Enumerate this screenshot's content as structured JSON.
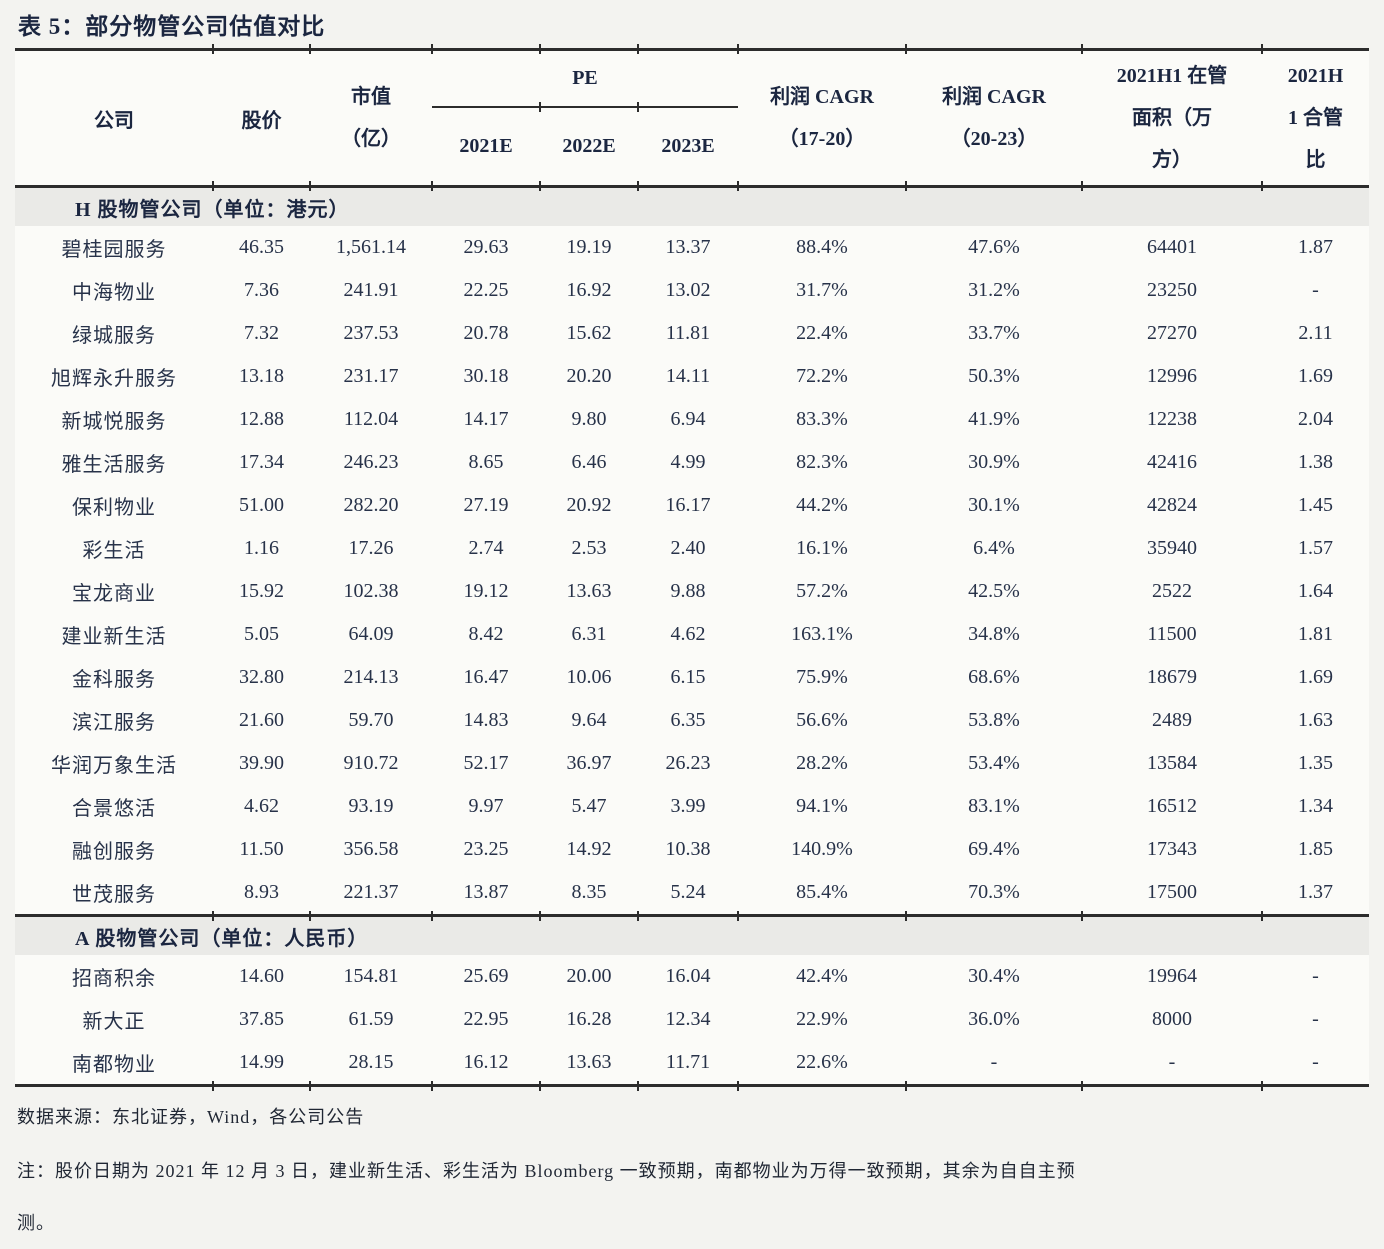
{
  "title": "表 5：部分物管公司估值对比",
  "header": {
    "company": "公司",
    "price": "股价",
    "market_cap_lines": [
      "市值",
      "（亿）"
    ],
    "pe_group": "PE",
    "pe_years": [
      "2021E",
      "2022E",
      "2023E"
    ],
    "cagr_17_20_lines": [
      "利润 CAGR",
      "（17-20）"
    ],
    "cagr_20_23_lines": [
      "利润 CAGR",
      "（20-23）"
    ],
    "managed_area_lines": [
      "2021H1 在管",
      "面积（万",
      "方）"
    ],
    "ratio_lines": [
      "2021H",
      "1 合管",
      "比"
    ]
  },
  "sections": [
    {
      "label": "H 股物管公司（单位：港元）",
      "rows": [
        [
          "碧桂园服务",
          "46.35",
          "1,561.14",
          "29.63",
          "19.19",
          "13.37",
          "88.4%",
          "47.6%",
          "64401",
          "1.87"
        ],
        [
          "中海物业",
          "7.36",
          "241.91",
          "22.25",
          "16.92",
          "13.02",
          "31.7%",
          "31.2%",
          "23250",
          "-"
        ],
        [
          "绿城服务",
          "7.32",
          "237.53",
          "20.78",
          "15.62",
          "11.81",
          "22.4%",
          "33.7%",
          "27270",
          "2.11"
        ],
        [
          "旭辉永升服务",
          "13.18",
          "231.17",
          "30.18",
          "20.20",
          "14.11",
          "72.2%",
          "50.3%",
          "12996",
          "1.69"
        ],
        [
          "新城悦服务",
          "12.88",
          "112.04",
          "14.17",
          "9.80",
          "6.94",
          "83.3%",
          "41.9%",
          "12238",
          "2.04"
        ],
        [
          "雅生活服务",
          "17.34",
          "246.23",
          "8.65",
          "6.46",
          "4.99",
          "82.3%",
          "30.9%",
          "42416",
          "1.38"
        ],
        [
          "保利物业",
          "51.00",
          "282.20",
          "27.19",
          "20.92",
          "16.17",
          "44.2%",
          "30.1%",
          "42824",
          "1.45"
        ],
        [
          "彩生活",
          "1.16",
          "17.26",
          "2.74",
          "2.53",
          "2.40",
          "16.1%",
          "6.4%",
          "35940",
          "1.57"
        ],
        [
          "宝龙商业",
          "15.92",
          "102.38",
          "19.12",
          "13.63",
          "9.88",
          "57.2%",
          "42.5%",
          "2522",
          "1.64"
        ],
        [
          "建业新生活",
          "5.05",
          "64.09",
          "8.42",
          "6.31",
          "4.62",
          "163.1%",
          "34.8%",
          "11500",
          "1.81"
        ],
        [
          "金科服务",
          "32.80",
          "214.13",
          "16.47",
          "10.06",
          "6.15",
          "75.9%",
          "68.6%",
          "18679",
          "1.69"
        ],
        [
          "滨江服务",
          "21.60",
          "59.70",
          "14.83",
          "9.64",
          "6.35",
          "56.6%",
          "53.8%",
          "2489",
          "1.63"
        ],
        [
          "华润万象生活",
          "39.90",
          "910.72",
          "52.17",
          "36.97",
          "26.23",
          "28.2%",
          "53.4%",
          "13584",
          "1.35"
        ],
        [
          "合景悠活",
          "4.62",
          "93.19",
          "9.97",
          "5.47",
          "3.99",
          "94.1%",
          "83.1%",
          "16512",
          "1.34"
        ],
        [
          "融创服务",
          "11.50",
          "356.58",
          "23.25",
          "14.92",
          "10.38",
          "140.9%",
          "69.4%",
          "17343",
          "1.85"
        ],
        [
          "世茂服务",
          "8.93",
          "221.37",
          "13.87",
          "8.35",
          "5.24",
          "85.4%",
          "70.3%",
          "17500",
          "1.37"
        ]
      ]
    },
    {
      "label": "A 股物管公司（单位：人民币）",
      "rows": [
        [
          "招商积余",
          "14.60",
          "154.81",
          "25.69",
          "20.00",
          "16.04",
          "42.4%",
          "30.4%",
          "19964",
          "-"
        ],
        [
          "新大正",
          "37.85",
          "61.59",
          "22.95",
          "16.28",
          "12.34",
          "22.9%",
          "36.0%",
          "8000",
          "-"
        ],
        [
          "南都物业",
          "14.99",
          "28.15",
          "16.12",
          "13.63",
          "11.71",
          "22.6%",
          "-",
          "-",
          "-"
        ]
      ]
    }
  ],
  "footer": {
    "source": "数据来源：东北证券，Wind，各公司公告",
    "note_lines": [
      "注：股价日期为 2021 年 12 月 3 日，建业新生活、彩生活为 Bloomberg 一致预期，南都物业为万得一致预期，其余为自自主预",
      "测。"
    ]
  },
  "colors": {
    "page_bg": "#f3f3f0",
    "row_bg": "#fbfbf8",
    "section_bg": "#eaeae7",
    "rule": "#2c2c2c",
    "ink": "#1b2640",
    "data_ink": "#273249",
    "note_ink": "#1f2633"
  }
}
